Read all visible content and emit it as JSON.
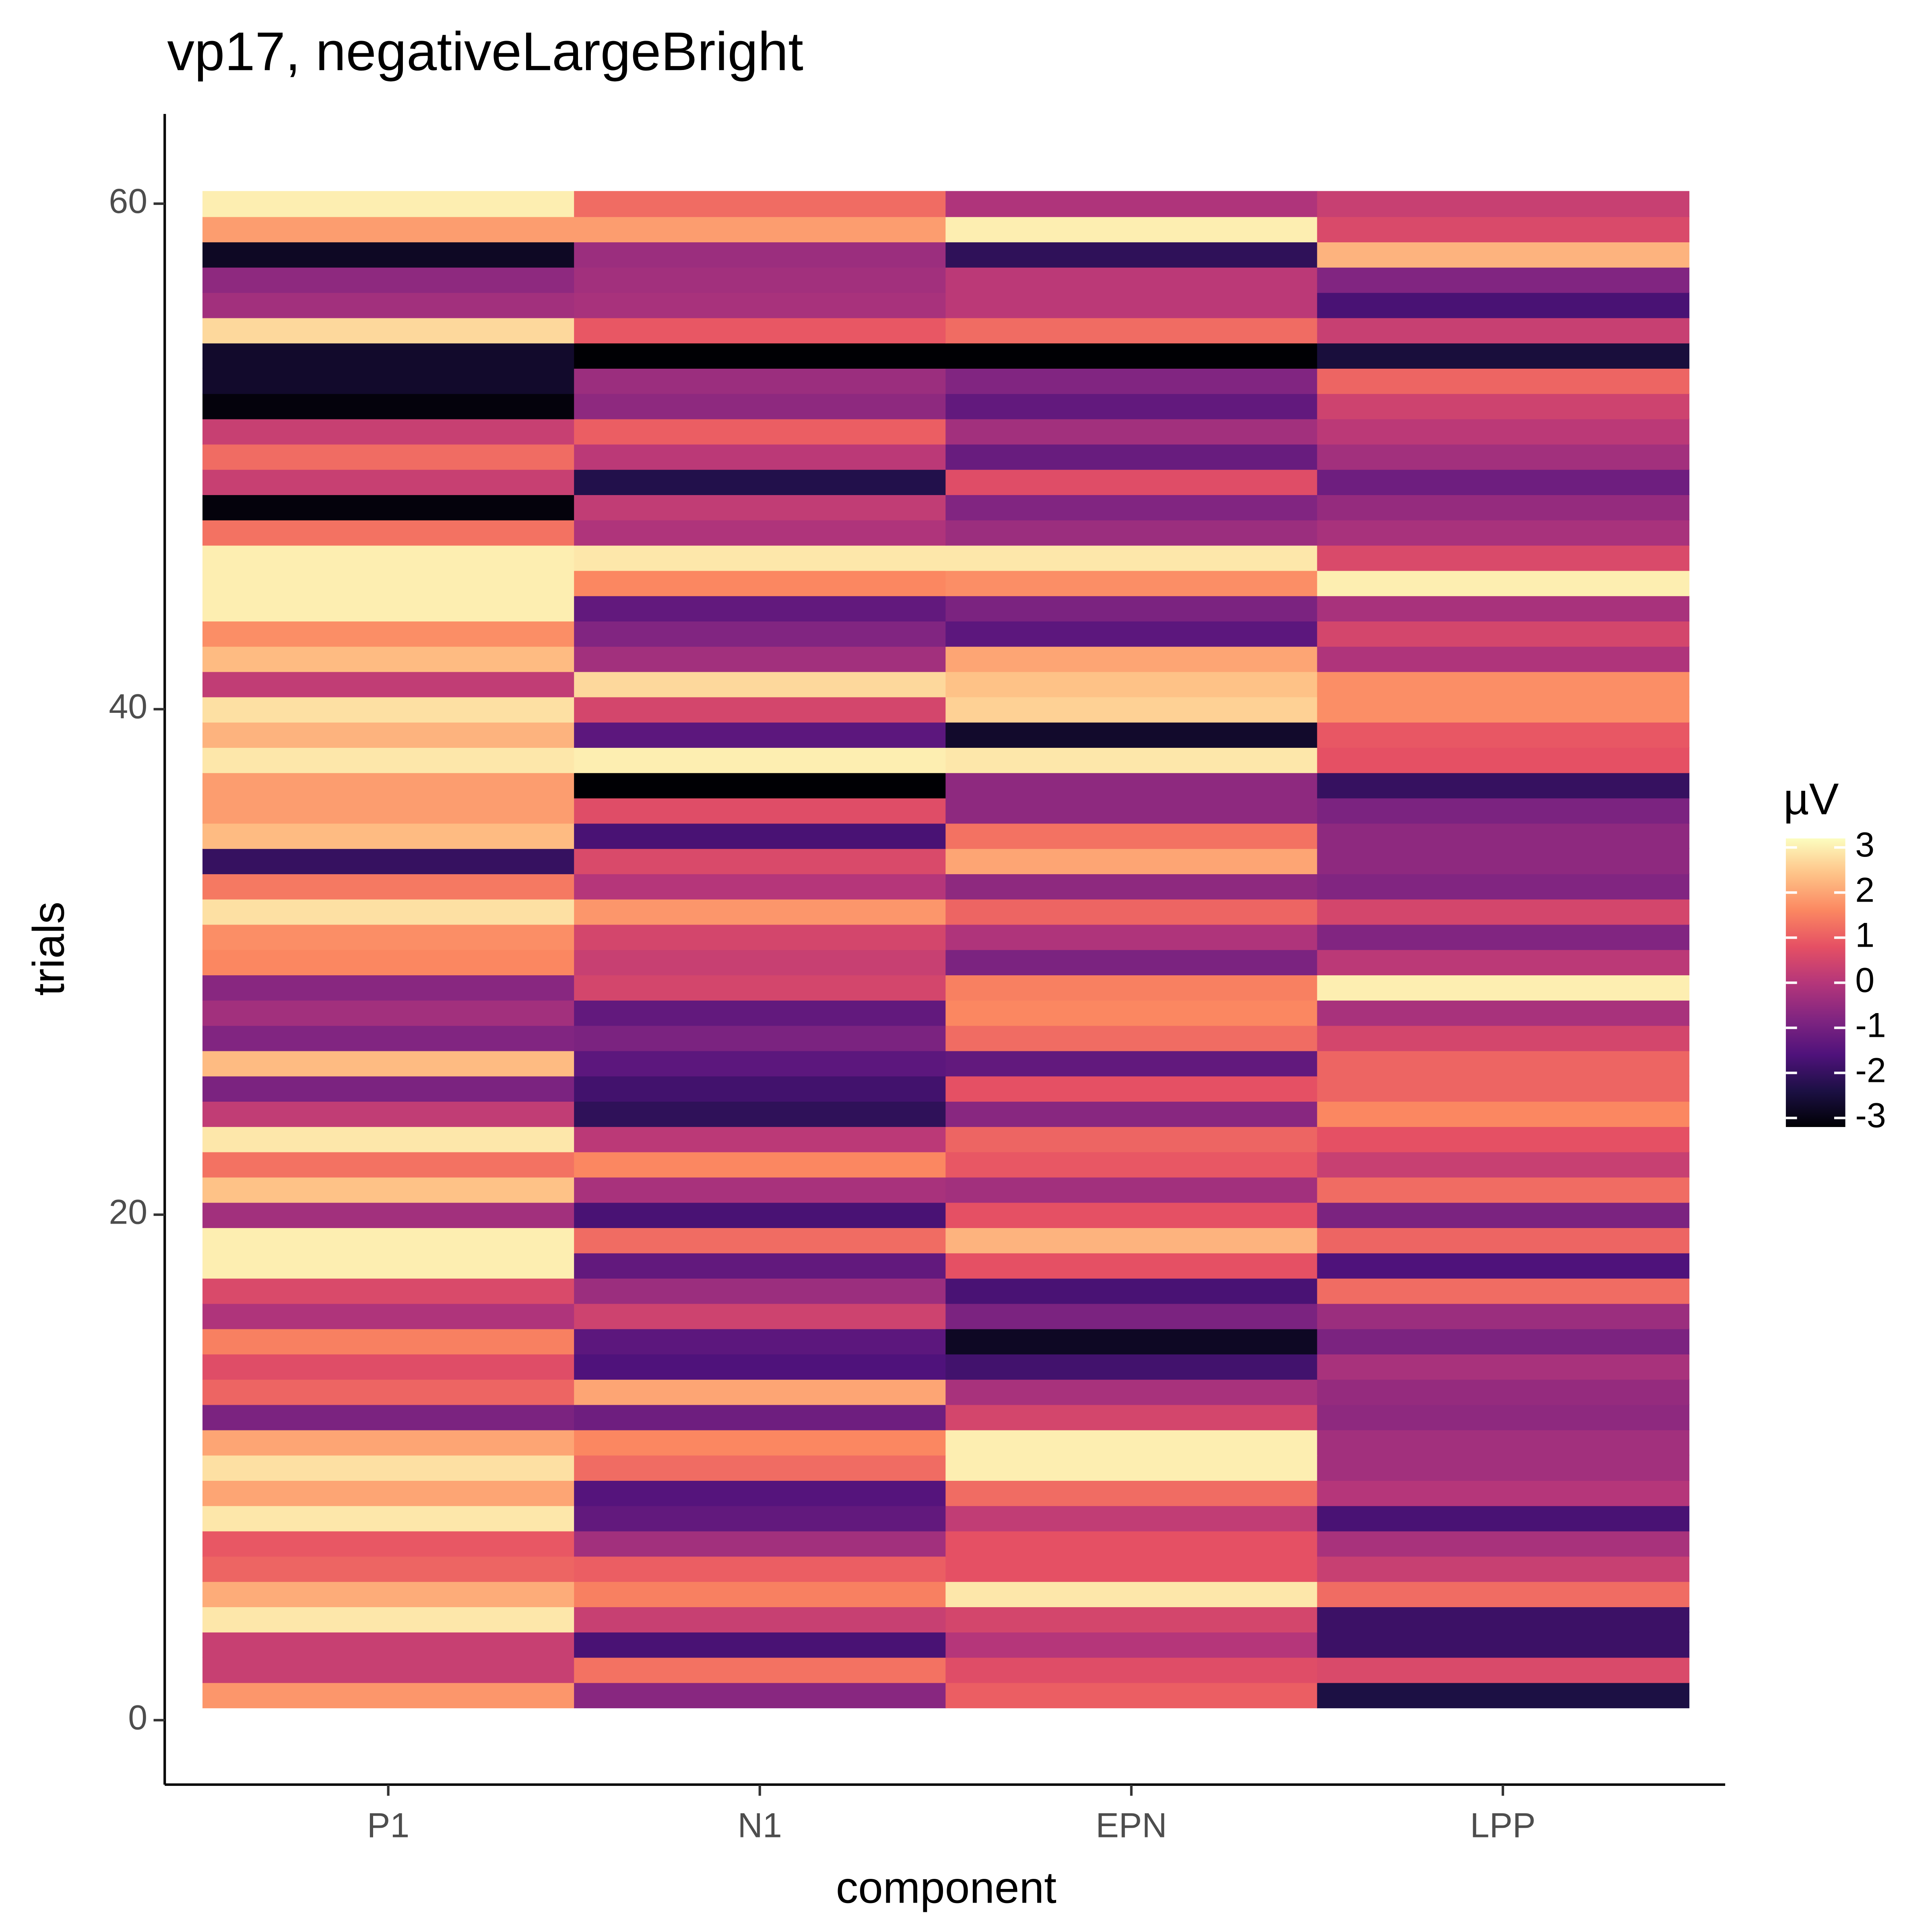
{
  "chart_data": {
    "type": "heatmap",
    "title": "vp17, negativeLargeBright",
    "x_label": "component",
    "y_label": "trials",
    "legend_title": "µV",
    "x": [
      "P1",
      "N1",
      "EPN",
      "LPP"
    ],
    "y": [
      1,
      2,
      3,
      4,
      5,
      6,
      7,
      8,
      9,
      10,
      11,
      12,
      13,
      14,
      15,
      16,
      17,
      18,
      19,
      20,
      21,
      22,
      23,
      24,
      25,
      26,
      27,
      28,
      29,
      30,
      31,
      32,
      33,
      34,
      35,
      36,
      37,
      38,
      39,
      40,
      41,
      42,
      43,
      44,
      45,
      46,
      47,
      48,
      49,
      50,
      51,
      52,
      53,
      54,
      55,
      56,
      57,
      58,
      59,
      60
    ],
    "values": [
      [
        1.8,
        -0.7,
        1.0,
        -2.4
      ],
      [
        0.3,
        1.3,
        0.7,
        0.6
      ],
      [
        0.3,
        -1.7,
        0.0,
        -1.9
      ],
      [
        2.9,
        0.3,
        0.5,
        -1.9
      ],
      [
        2.1,
        1.5,
        2.9,
        1.2
      ],
      [
        1.1,
        1.0,
        0.8,
        0.3
      ],
      [
        0.9,
        -0.3,
        0.8,
        -0.2
      ],
      [
        2.9,
        -1.3,
        0.2,
        -1.7
      ],
      [
        2.0,
        -1.5,
        1.2,
        0.0
      ],
      [
        2.8,
        1.2,
        3.0,
        -0.3
      ],
      [
        2.0,
        1.6,
        3.0,
        -0.3
      ],
      [
        -0.9,
        -1.1,
        0.5,
        -0.6
      ],
      [
        1.1,
        2.0,
        -0.2,
        -0.5
      ],
      [
        0.7,
        -1.6,
        -1.8,
        -0.2
      ],
      [
        1.5,
        -1.4,
        -2.8,
        -0.9
      ],
      [
        -0.1,
        0.4,
        -0.9,
        -0.4
      ],
      [
        0.6,
        -0.4,
        -1.7,
        1.2
      ],
      [
        3.0,
        -1.3,
        0.8,
        -1.6
      ],
      [
        3.0,
        1.2,
        2.2,
        1.1
      ],
      [
        -0.3,
        -1.7,
        0.8,
        -0.9
      ],
      [
        2.4,
        -0.2,
        -0.3,
        1.2
      ],
      [
        1.3,
        1.6,
        0.9,
        0.3
      ],
      [
        2.9,
        0.1,
        1.1,
        0.8
      ],
      [
        0.2,
        -2.1,
        -0.7,
        1.6
      ],
      [
        -0.9,
        -1.8,
        0.8,
        1.1
      ],
      [
        2.3,
        -1.4,
        -1.3,
        1.1
      ],
      [
        -0.8,
        -0.9,
        1.2,
        0.5
      ],
      [
        -0.3,
        -1.3,
        1.6,
        -0.2
      ],
      [
        -0.7,
        0.5,
        1.5,
        3.0
      ],
      [
        1.6,
        0.3,
        -0.9,
        0.1
      ],
      [
        1.7,
        0.5,
        -0.1,
        -0.8
      ],
      [
        2.8,
        1.8,
        1.1,
        0.5
      ],
      [
        1.4,
        0.0,
        -0.6,
        -0.8
      ],
      [
        -2.0,
        0.6,
        2.0,
        -0.6
      ],
      [
        2.3,
        -1.7,
        1.3,
        -0.6
      ],
      [
        1.9,
        0.7,
        -0.6,
        -0.9
      ],
      [
        1.9,
        -3.2,
        -0.6,
        -2.0
      ],
      [
        2.9,
        3.0,
        2.9,
        0.8
      ],
      [
        2.2,
        -1.4,
        -2.7,
        0.9
      ],
      [
        2.8,
        0.5,
        2.6,
        1.7
      ],
      [
        0.2,
        2.7,
        2.4,
        1.7
      ],
      [
        2.3,
        -0.3,
        2.0,
        -0.1
      ],
      [
        1.7,
        -0.8,
        -1.4,
        0.5
      ],
      [
        3.0,
        -1.3,
        -0.9,
        -0.2
      ],
      [
        3.0,
        1.6,
        1.7,
        3.0
      ],
      [
        3.0,
        2.9,
        2.9,
        0.6
      ],
      [
        1.3,
        -0.1,
        -0.4,
        -0.2
      ],
      [
        -3.1,
        0.2,
        -0.8,
        -0.5
      ],
      [
        0.3,
        -2.3,
        0.7,
        -1.1
      ],
      [
        1.2,
        0.1,
        -1.2,
        -0.3
      ],
      [
        0.3,
        1.0,
        -0.3,
        0.1
      ],
      [
        -3.1,
        -0.6,
        -1.3,
        0.4
      ],
      [
        -2.7,
        -0.4,
        -0.8,
        1.1
      ],
      [
        -2.7,
        -3.2,
        -3.2,
        -2.5
      ],
      [
        2.7,
        0.9,
        1.2,
        0.3
      ],
      [
        -0.3,
        -0.2,
        0.1,
        -1.7
      ],
      [
        -0.6,
        -0.3,
        0.1,
        -0.8
      ],
      [
        -2.8,
        -0.4,
        -2.1,
        2.2
      ],
      [
        1.9,
        1.9,
        3.0,
        0.6
      ],
      [
        3.0,
        1.2,
        -0.1,
        0.3
      ]
    ],
    "ylim": [
      -2.55,
      63.55
    ],
    "yticks": [
      0,
      20,
      40,
      60
    ],
    "colormap": "magma",
    "clim": [
      -3.2,
      3.2
    ],
    "cticks": [
      -3,
      -2,
      -1,
      0,
      1,
      2,
      3
    ]
  }
}
